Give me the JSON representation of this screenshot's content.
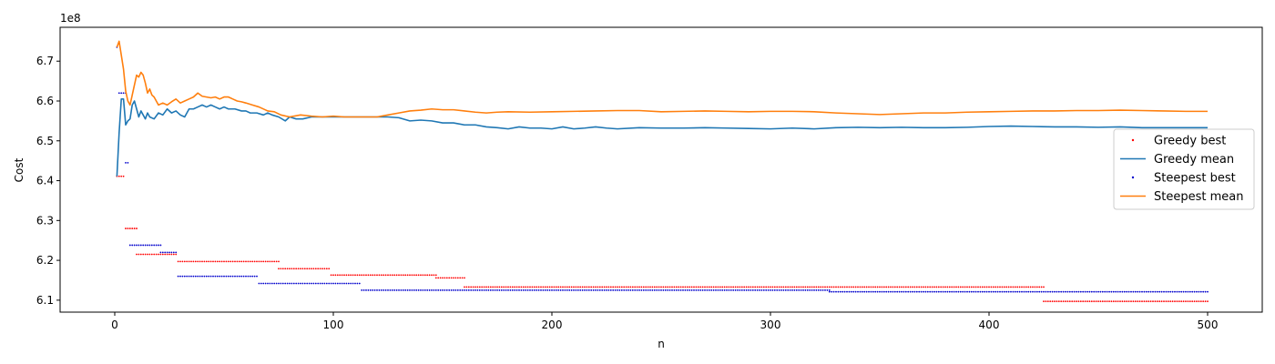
{
  "chart_data": {
    "type": "line",
    "title": "",
    "xlabel": "n",
    "ylabel": "Cost",
    "y_offset_text": "1e8",
    "y_scale": 100000000,
    "xlim": [
      -25,
      525
    ],
    "ylim": [
      6.07,
      6.785
    ],
    "x_ticks": [
      0,
      100,
      200,
      300,
      400,
      500
    ],
    "x_tick_labels": [
      "0",
      "100",
      "200",
      "300",
      "400",
      "500"
    ],
    "y_ticks": [
      6.1,
      6.2,
      6.3,
      6.4,
      6.5,
      6.6,
      6.7
    ],
    "y_tick_labels": [
      "6.1",
      "6.2",
      "6.3",
      "6.4",
      "6.5",
      "6.6",
      "6.7"
    ],
    "grid": false,
    "legend_position": "center-right",
    "series": [
      {
        "name": "Greedy best",
        "kind": "step-scatter",
        "color": "#ff0000",
        "segments": [
          {
            "x_start": 1,
            "x_end": 4,
            "y": 6.411
          },
          {
            "x_start": 5,
            "x_end": 10,
            "y": 6.28
          },
          {
            "x_start": 10,
            "x_end": 28,
            "y": 6.215
          },
          {
            "x_start": 29,
            "x_end": 75,
            "y": 6.197
          },
          {
            "x_start": 75,
            "x_end": 98,
            "y": 6.179
          },
          {
            "x_start": 99,
            "x_end": 147,
            "y": 6.163
          },
          {
            "x_start": 147,
            "x_end": 160,
            "y": 6.156
          },
          {
            "x_start": 160,
            "x_end": 425,
            "y": 6.133
          },
          {
            "x_start": 425,
            "x_end": 500,
            "y": 6.097
          }
        ]
      },
      {
        "name": "Greedy mean",
        "kind": "line",
        "color": "#1f77b4",
        "points": [
          [
            1,
            6.411
          ],
          [
            2,
            6.52
          ],
          [
            3,
            6.605
          ],
          [
            4,
            6.605
          ],
          [
            5,
            6.54
          ],
          [
            6,
            6.55
          ],
          [
            7,
            6.555
          ],
          [
            8,
            6.59
          ],
          [
            9,
            6.6
          ],
          [
            10,
            6.58
          ],
          [
            11,
            6.56
          ],
          [
            12,
            6.575
          ],
          [
            13,
            6.565
          ],
          [
            14,
            6.555
          ],
          [
            15,
            6.57
          ],
          [
            16,
            6.56
          ],
          [
            18,
            6.555
          ],
          [
            20,
            6.57
          ],
          [
            22,
            6.565
          ],
          [
            24,
            6.58
          ],
          [
            26,
            6.57
          ],
          [
            28,
            6.575
          ],
          [
            30,
            6.565
          ],
          [
            32,
            6.56
          ],
          [
            34,
            6.58
          ],
          [
            36,
            6.58
          ],
          [
            38,
            6.585
          ],
          [
            40,
            6.59
          ],
          [
            42,
            6.585
          ],
          [
            44,
            6.59
          ],
          [
            46,
            6.585
          ],
          [
            48,
            6.58
          ],
          [
            50,
            6.585
          ],
          [
            52,
            6.58
          ],
          [
            55,
            6.58
          ],
          [
            58,
            6.575
          ],
          [
            60,
            6.575
          ],
          [
            62,
            6.57
          ],
          [
            65,
            6.57
          ],
          [
            68,
            6.565
          ],
          [
            70,
            6.57
          ],
          [
            72,
            6.565
          ],
          [
            75,
            6.56
          ],
          [
            78,
            6.55
          ],
          [
            80,
            6.56
          ],
          [
            83,
            6.555
          ],
          [
            86,
            6.555
          ],
          [
            90,
            6.56
          ],
          [
            95,
            6.56
          ],
          [
            100,
            6.56
          ],
          [
            105,
            6.56
          ],
          [
            110,
            6.56
          ],
          [
            115,
            6.56
          ],
          [
            120,
            6.56
          ],
          [
            125,
            6.56
          ],
          [
            130,
            6.558
          ],
          [
            135,
            6.55
          ],
          [
            140,
            6.552
          ],
          [
            145,
            6.55
          ],
          [
            150,
            6.545
          ],
          [
            155,
            6.545
          ],
          [
            160,
            6.54
          ],
          [
            165,
            6.54
          ],
          [
            170,
            6.535
          ],
          [
            175,
            6.533
          ],
          [
            180,
            6.53
          ],
          [
            185,
            6.535
          ],
          [
            190,
            6.532
          ],
          [
            195,
            6.532
          ],
          [
            200,
            6.53
          ],
          [
            205,
            6.535
          ],
          [
            210,
            6.53
          ],
          [
            215,
            6.532
          ],
          [
            220,
            6.535
          ],
          [
            225,
            6.532
          ],
          [
            230,
            6.53
          ],
          [
            240,
            6.533
          ],
          [
            250,
            6.532
          ],
          [
            260,
            6.532
          ],
          [
            270,
            6.533
          ],
          [
            280,
            6.532
          ],
          [
            290,
            6.531
          ],
          [
            300,
            6.53
          ],
          [
            310,
            6.532
          ],
          [
            320,
            6.53
          ],
          [
            330,
            6.533
          ],
          [
            340,
            6.534
          ],
          [
            350,
            6.533
          ],
          [
            360,
            6.534
          ],
          [
            370,
            6.533
          ],
          [
            380,
            6.533
          ],
          [
            390,
            6.534
          ],
          [
            400,
            6.536
          ],
          [
            410,
            6.537
          ],
          [
            420,
            6.536
          ],
          [
            430,
            6.535
          ],
          [
            440,
            6.535
          ],
          [
            450,
            6.534
          ],
          [
            460,
            6.535
          ],
          [
            470,
            6.533
          ],
          [
            480,
            6.533
          ],
          [
            490,
            6.533
          ],
          [
            500,
            6.533
          ]
        ]
      },
      {
        "name": "Steepest best",
        "kind": "step-scatter",
        "color": "#0000cc",
        "segments": [
          {
            "x_start": 1,
            "x_end": 1,
            "y": 6.735
          },
          {
            "x_start": 2,
            "x_end": 5,
            "y": 6.62
          },
          {
            "x_start": 5,
            "x_end": 6,
            "y": 6.445
          },
          {
            "x_start": 7,
            "x_end": 21,
            "y": 6.238
          },
          {
            "x_start": 21,
            "x_end": 28,
            "y": 6.22
          },
          {
            "x_start": 29,
            "x_end": 65,
            "y": 6.16
          },
          {
            "x_start": 66,
            "x_end": 112,
            "y": 6.142
          },
          {
            "x_start": 113,
            "x_end": 327,
            "y": 6.125
          },
          {
            "x_start": 327,
            "x_end": 500,
            "y": 6.121
          }
        ]
      },
      {
        "name": "Steepest mean",
        "kind": "line",
        "color": "#ff7f0e",
        "points": [
          [
            1,
            6.735
          ],
          [
            2,
            6.75
          ],
          [
            3,
            6.715
          ],
          [
            4,
            6.68
          ],
          [
            5,
            6.625
          ],
          [
            6,
            6.6
          ],
          [
            7,
            6.59
          ],
          [
            8,
            6.615
          ],
          [
            9,
            6.64
          ],
          [
            10,
            6.665
          ],
          [
            11,
            6.66
          ],
          [
            12,
            6.672
          ],
          [
            13,
            6.665
          ],
          [
            14,
            6.645
          ],
          [
            15,
            6.62
          ],
          [
            16,
            6.63
          ],
          [
            17,
            6.615
          ],
          [
            18,
            6.61
          ],
          [
            20,
            6.59
          ],
          [
            22,
            6.595
          ],
          [
            24,
            6.59
          ],
          [
            26,
            6.598
          ],
          [
            28,
            6.605
          ],
          [
            30,
            6.595
          ],
          [
            32,
            6.6
          ],
          [
            34,
            6.605
          ],
          [
            36,
            6.61
          ],
          [
            38,
            6.62
          ],
          [
            40,
            6.612
          ],
          [
            42,
            6.61
          ],
          [
            44,
            6.608
          ],
          [
            46,
            6.61
          ],
          [
            48,
            6.605
          ],
          [
            50,
            6.61
          ],
          [
            52,
            6.61
          ],
          [
            54,
            6.605
          ],
          [
            56,
            6.6
          ],
          [
            58,
            6.598
          ],
          [
            60,
            6.595
          ],
          [
            63,
            6.59
          ],
          [
            66,
            6.585
          ],
          [
            70,
            6.575
          ],
          [
            73,
            6.573
          ],
          [
            76,
            6.565
          ],
          [
            80,
            6.56
          ],
          [
            85,
            6.565
          ],
          [
            90,
            6.562
          ],
          [
            95,
            6.56
          ],
          [
            100,
            6.562
          ],
          [
            105,
            6.56
          ],
          [
            110,
            6.56
          ],
          [
            115,
            6.56
          ],
          [
            120,
            6.56
          ],
          [
            125,
            6.565
          ],
          [
            130,
            6.57
          ],
          [
            135,
            6.575
          ],
          [
            140,
            6.577
          ],
          [
            145,
            6.58
          ],
          [
            150,
            6.578
          ],
          [
            155,
            6.578
          ],
          [
            160,
            6.575
          ],
          [
            165,
            6.572
          ],
          [
            170,
            6.57
          ],
          [
            175,
            6.572
          ],
          [
            180,
            6.573
          ],
          [
            190,
            6.572
          ],
          [
            200,
            6.573
          ],
          [
            210,
            6.574
          ],
          [
            220,
            6.575
          ],
          [
            230,
            6.576
          ],
          [
            240,
            6.576
          ],
          [
            250,
            6.573
          ],
          [
            260,
            6.574
          ],
          [
            270,
            6.575
          ],
          [
            280,
            6.574
          ],
          [
            290,
            6.573
          ],
          [
            300,
            6.574
          ],
          [
            310,
            6.574
          ],
          [
            320,
            6.573
          ],
          [
            330,
            6.57
          ],
          [
            340,
            6.568
          ],
          [
            350,
            6.566
          ],
          [
            360,
            6.568
          ],
          [
            370,
            6.57
          ],
          [
            380,
            6.57
          ],
          [
            390,
            6.572
          ],
          [
            400,
            6.573
          ],
          [
            410,
            6.574
          ],
          [
            420,
            6.575
          ],
          [
            430,
            6.575
          ],
          [
            440,
            6.576
          ],
          [
            450,
            6.576
          ],
          [
            460,
            6.577
          ],
          [
            470,
            6.576
          ],
          [
            480,
            6.575
          ],
          [
            490,
            6.574
          ],
          [
            500,
            6.574
          ]
        ]
      }
    ]
  }
}
